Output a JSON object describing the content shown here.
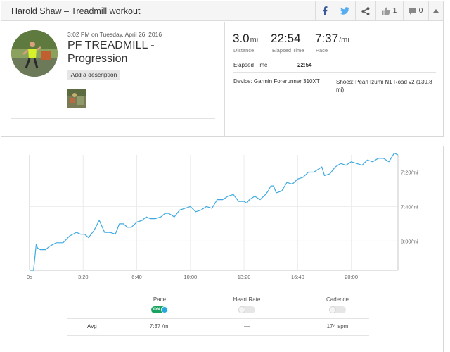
{
  "header": {
    "title": "Harold Shaw – Treadmill workout",
    "facebook_icon": "facebook-icon",
    "twitter_icon": "twitter-icon",
    "share_icon": "share-icon",
    "like_icon": "thumbs-up-icon",
    "like_count": "1",
    "comment_icon": "comment-icon",
    "comment_count": "0",
    "collapse_icon": "caret-up-icon"
  },
  "workout": {
    "date": "3:02 PM on Tuesday, April 26, 2016",
    "title": "PF TREADMILL - Progression",
    "add_description": "Add a description"
  },
  "stats": {
    "distance": {
      "value": "3.0",
      "unit": "mi",
      "label": "Distance"
    },
    "elapsed": {
      "value": "22:54",
      "label": "Elapsed Time"
    },
    "pace": {
      "value": "7:37",
      "unit": "/mi",
      "label": "Pace"
    },
    "elapsed_row": {
      "label": "Elapsed Time",
      "value": "22:54"
    },
    "device": "Device: Garmin Forerunner 310XT",
    "shoes": "Shoes: Pearl Izumi N1 Road v2 (139.8 mi)"
  },
  "chart_data": {
    "type": "line",
    "title": "",
    "xlabel": "",
    "ylabel": "",
    "x_ticks": [
      "0s",
      "3:20",
      "6:40",
      "10:00",
      "13:20",
      "16:40",
      "20:00"
    ],
    "x_tick_seconds": [
      0,
      200,
      400,
      600,
      800,
      1000,
      1200
    ],
    "y_ticks": [
      "7:20/mi",
      "7:40/mi",
      "8:00/mi"
    ],
    "y_tick_seconds": [
      440,
      460,
      480
    ],
    "y_range_seconds_per_mi": [
      497,
      430
    ],
    "x_range_seconds": [
      0,
      1374
    ],
    "grid": true,
    "series": [
      {
        "name": "Pace",
        "color": "#3da9e0",
        "x": [
          0,
          15,
          25,
          30,
          40,
          60,
          75,
          100,
          125,
          150,
          175,
          190,
          205,
          220,
          240,
          260,
          280,
          300,
          320,
          335,
          350,
          365,
          380,
          400,
          420,
          435,
          450,
          470,
          490,
          505,
          520,
          540,
          560,
          580,
          600,
          620,
          640,
          660,
          680,
          700,
          720,
          740,
          760,
          770,
          780,
          800,
          810,
          820,
          840,
          860,
          880,
          890,
          900,
          910,
          920,
          940,
          960,
          980,
          1000,
          1020,
          1040,
          1060,
          1080,
          1090,
          1100,
          1120,
          1140,
          1160,
          1180,
          1200,
          1220,
          1240,
          1260,
          1280,
          1300,
          1320,
          1340,
          1360,
          1374
        ],
        "pace_seconds": [
          497,
          497,
          482,
          484,
          485,
          485,
          483,
          481,
          481,
          477,
          475,
          476,
          476,
          478,
          474,
          468,
          475,
          475,
          476,
          470,
          470,
          472,
          472,
          469,
          468,
          466,
          467,
          467,
          466,
          464,
          464,
          466,
          462,
          461,
          460,
          463,
          462,
          460,
          461,
          456,
          456,
          454,
          453,
          455,
          457,
          457,
          458,
          456,
          454,
          456,
          453,
          451,
          448,
          448,
          452,
          451,
          446,
          447,
          444,
          443,
          440,
          440,
          438,
          437,
          442,
          441,
          437,
          435,
          436,
          434,
          435,
          436,
          433,
          434,
          432,
          432,
          434,
          429,
          430
        ]
      }
    ]
  },
  "metrics": {
    "pace": {
      "label": "Pace",
      "on": true,
      "toggle_text": "ON",
      "avg": "7:37 /mi"
    },
    "heart_rate": {
      "label": "Heart Rate",
      "on": false,
      "avg": "—"
    },
    "cadence": {
      "label": "Cadence",
      "on": false,
      "avg": "174 spm"
    },
    "avg_label": "Avg"
  }
}
